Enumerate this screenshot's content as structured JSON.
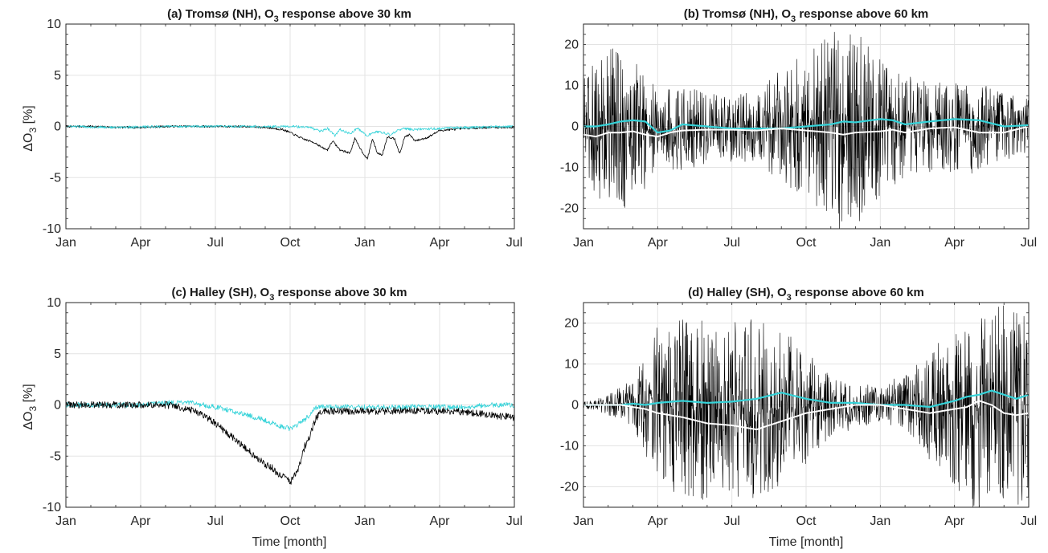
{
  "figure": {
    "panels": [
      {
        "key": "a",
        "title": "(a) Tromsø (NH), O",
        "title_sub": "3",
        "title_suffix": " response above 30 km"
      },
      {
        "key": "b",
        "title": "(b) Tromsø (NH), O",
        "title_sub": "3",
        "title_suffix": " response above 60 km"
      },
      {
        "key": "c",
        "title": "(c) Halley (SH), O",
        "title_sub": "3",
        "title_suffix": " response above 30 km"
      },
      {
        "key": "d",
        "title": "(d) Halley (SH), O",
        "title_sub": "3",
        "title_suffix": " response above 60 km"
      }
    ],
    "ylabel_delta": "ΔO",
    "ylabel_sub": "3",
    "ylabel_unit": " [%]",
    "xlabel": "Time [month]"
  },
  "chart_data": [
    {
      "type": "line",
      "title": "(a) Tromsø (NH), O3 response above 30 km",
      "xlabel": "",
      "ylabel": "ΔO3 [%]",
      "xticks": [
        "Jan",
        "Apr",
        "Jul",
        "Oct",
        "Jan",
        "Apr",
        "Jul"
      ],
      "xlim": [
        0,
        18
      ],
      "ylim": [
        -10,
        10
      ],
      "yticks": [
        -10,
        -5,
        0,
        5,
        10
      ],
      "grid": true,
      "colors": {
        "black": "#000000",
        "cyan": "#35d3d9",
        "white": "#ffffff"
      },
      "series": [
        {
          "color": "#000000",
          "width": 0.8,
          "noise": 0.1,
          "x": [
            0,
            1,
            2,
            3,
            4,
            5,
            6,
            7,
            8,
            8.7,
            9,
            9.5,
            10,
            10.3,
            10.5,
            10.7,
            11,
            11.4,
            11.6,
            11.9,
            12.1,
            12.3,
            12.5,
            12.7,
            12.9,
            13.2,
            13.4,
            13.6,
            13.8,
            14,
            14.2,
            14.5,
            15,
            16,
            17,
            18
          ],
          "y": [
            0,
            0,
            -0.1,
            -0.1,
            0,
            0,
            0,
            0,
            -0.1,
            -0.3,
            -0.6,
            -1.2,
            -1.6,
            -2.1,
            -2.3,
            -1.4,
            -2.3,
            -2.6,
            -1.2,
            -2.5,
            -3.2,
            -1.2,
            -2.6,
            -2.8,
            -1.0,
            -1.2,
            -2.7,
            -1.0,
            -0.8,
            -1.4,
            -1.3,
            -1.1,
            -0.4,
            -0.2,
            -0.1,
            -0.1
          ]
        },
        {
          "color": "#35d3d9",
          "width": 0.8,
          "noise": 0.12,
          "x": [
            0,
            2,
            4,
            6,
            8,
            9,
            9.8,
            10.2,
            10.5,
            10.8,
            11,
            11.4,
            11.7,
            12.1,
            12.5,
            13,
            13.5,
            14,
            16,
            18
          ],
          "y": [
            0,
            -0.1,
            0,
            0,
            0,
            0,
            -0.1,
            -0.5,
            -0.2,
            -0.9,
            -0.3,
            -0.7,
            -0.2,
            -0.9,
            -0.5,
            -0.8,
            -0.2,
            -0.3,
            -0.1,
            0
          ]
        }
      ]
    },
    {
      "type": "line",
      "title": "(b) Tromsø (NH), O3 response above 60 km",
      "xlabel": "",
      "ylabel": "",
      "xticks": [
        "Jan",
        "Apr",
        "Jul",
        "Oct",
        "Jan",
        "Apr",
        "Jul"
      ],
      "xlim": [
        0,
        18
      ],
      "ylim": [
        -25,
        25
      ],
      "yticks": [
        -20,
        -10,
        0,
        10,
        20
      ],
      "grid": true,
      "series": [
        {
          "color": "#000000",
          "width": 0.6,
          "noise_profile": true,
          "x": [
            0,
            0.5,
            1,
            1.5,
            2,
            2.5,
            3,
            4,
            5,
            6,
            7,
            8,
            9,
            10,
            11,
            12,
            13,
            14,
            15,
            16,
            17,
            18
          ],
          "y": [
            0,
            0,
            -0.5,
            -0.5,
            -0.5,
            -1,
            -0.5,
            -0.5,
            -0.5,
            -0.5,
            0,
            0,
            0,
            0,
            -0.5,
            -0.5,
            0,
            0,
            -0.5,
            -0.5,
            0,
            0
          ]
        },
        {
          "color": "#35d3d9",
          "width": 2.2,
          "x": [
            0,
            0.5,
            1,
            1.5,
            2,
            2.5,
            3,
            3.5,
            4,
            5,
            6,
            7,
            8,
            9,
            10,
            10.5,
            11,
            12,
            12.5,
            13,
            14,
            15,
            16,
            17,
            18
          ],
          "y": [
            0,
            0,
            0.5,
            1.2,
            1.5,
            1.2,
            -1.5,
            -1.0,
            0.5,
            0,
            -0.5,
            -0.5,
            -0.5,
            0,
            0.5,
            1.2,
            1.0,
            1.8,
            1.5,
            0.5,
            1.2,
            1.8,
            1.5,
            0,
            0.3
          ]
        },
        {
          "color": "#ffffff",
          "width": 2.0,
          "x": [
            0,
            0.5,
            1,
            1.5,
            2,
            2.5,
            3,
            3.5,
            4,
            5,
            6,
            7,
            8,
            9,
            10,
            10.5,
            11,
            12,
            12.5,
            13,
            14,
            15,
            16,
            17,
            18
          ],
          "y": [
            -2,
            -2.5,
            -1.5,
            -1.5,
            -1.2,
            -2.0,
            -2.5,
            -1.5,
            -1.0,
            -0.8,
            -0.8,
            -1.0,
            -0.5,
            -1.0,
            -1.5,
            -2.0,
            -1.5,
            -1.2,
            -0.8,
            -1.5,
            -0.5,
            -0.2,
            -1.5,
            -1.5,
            0
          ]
        }
      ]
    },
    {
      "type": "line",
      "title": "(c) Halley (SH), O3 response above 30 km",
      "xlabel": "Time [month]",
      "ylabel": "ΔO3 [%]",
      "xticks": [
        "Jan",
        "Apr",
        "Jul",
        "Oct",
        "Jan",
        "Apr",
        "Jul"
      ],
      "xlim": [
        0,
        18
      ],
      "ylim": [
        -10,
        10
      ],
      "yticks": [
        -10,
        -5,
        0,
        5,
        10
      ],
      "grid": true,
      "series": [
        {
          "color": "#35d3d9",
          "width": 0.8,
          "noise": 0.25,
          "x": [
            0,
            2,
            3,
            3.5,
            4,
            5,
            6,
            7,
            8,
            8.5,
            9,
            9.4,
            9.8,
            10,
            10.3,
            11,
            12,
            13,
            14,
            15,
            16,
            17,
            18
          ],
          "y": [
            0,
            0,
            0,
            0.1,
            0.2,
            0.2,
            -0.2,
            -0.8,
            -1.5,
            -2.0,
            -2.3,
            -1.8,
            -1.0,
            -0.3,
            -0.2,
            -0.2,
            -0.2,
            -0.2,
            -0.2,
            -0.2,
            -0.2,
            0,
            0
          ]
        },
        {
          "color": "#000000",
          "width": 0.8,
          "noise": 0.35,
          "x": [
            0,
            2,
            3,
            3.5,
            4,
            4.5,
            5,
            5.5,
            6,
            6.5,
            7,
            7.5,
            8,
            8.3,
            8.6,
            8.8,
            9,
            9.3,
            9.6,
            9.8,
            10,
            10.2,
            10.5,
            11,
            12,
            13,
            14,
            15,
            15.5,
            16,
            17,
            18
          ],
          "y": [
            0,
            0,
            0,
            0,
            0,
            -0.2,
            -0.5,
            -1.0,
            -1.8,
            -2.8,
            -3.8,
            -4.8,
            -5.8,
            -6.2,
            -7.0,
            -6.8,
            -7.6,
            -6.5,
            -4.0,
            -3.0,
            -1.5,
            -0.8,
            -0.6,
            -0.6,
            -0.6,
            -0.6,
            -0.6,
            -0.6,
            -0.6,
            -0.7,
            -1.0,
            -1.2
          ]
        }
      ]
    },
    {
      "type": "line",
      "title": "(d) Halley (SH), O3 response above 60 km",
      "xlabel": "Time [month]",
      "ylabel": "",
      "xticks": [
        "Jan",
        "Apr",
        "Jul",
        "Oct",
        "Jan",
        "Apr",
        "Jul"
      ],
      "xlim": [
        0,
        18
      ],
      "ylim": [
        -25,
        25
      ],
      "yticks": [
        -20,
        -10,
        0,
        10,
        20
      ],
      "grid": true,
      "series": [
        {
          "color": "#000000",
          "width": 0.6,
          "noise_profile": true,
          "x": [
            0,
            1,
            2,
            3,
            4,
            5,
            6,
            7,
            8,
            9,
            10,
            11,
            12,
            13,
            14,
            15,
            16,
            17,
            18
          ],
          "y": [
            0,
            0,
            0.5,
            0,
            -0.5,
            -1,
            -1,
            -1.5,
            -1,
            -0.5,
            -0.5,
            0,
            0,
            0,
            0,
            0,
            0,
            -1,
            -1
          ]
        },
        {
          "color": "#35d3d9",
          "width": 2.2,
          "x": [
            0,
            1,
            1.5,
            2,
            2.5,
            3,
            4,
            5,
            6,
            7,
            8,
            9,
            10,
            11,
            12,
            13,
            14,
            15,
            15.5,
            16,
            16.5,
            17,
            17.5,
            18
          ],
          "y": [
            0,
            0,
            0,
            0.3,
            0,
            0.5,
            1.0,
            0.5,
            0.8,
            1.5,
            3.0,
            1.5,
            0.5,
            0.5,
            0,
            0,
            -0.5,
            1.0,
            2.0,
            2.5,
            3.5,
            2.5,
            1.5,
            2.5
          ]
        },
        {
          "color": "#ffffff",
          "width": 2.0,
          "x": [
            0,
            1,
            1.5,
            2,
            2.5,
            3,
            4,
            5,
            6,
            7,
            8,
            9,
            10,
            11,
            12,
            13,
            14,
            15,
            15.5,
            16,
            16.5,
            17,
            17.5,
            18
          ],
          "y": [
            0,
            0,
            0,
            -0.5,
            -1.0,
            -2.0,
            -3.0,
            -4.5,
            -5.0,
            -6.0,
            -4.0,
            -2.0,
            -1.0,
            0,
            0,
            -1.0,
            -2.0,
            -1.0,
            -0.5,
            1.0,
            0,
            -2.0,
            -2.5,
            -2.0
          ]
        }
      ]
    }
  ]
}
